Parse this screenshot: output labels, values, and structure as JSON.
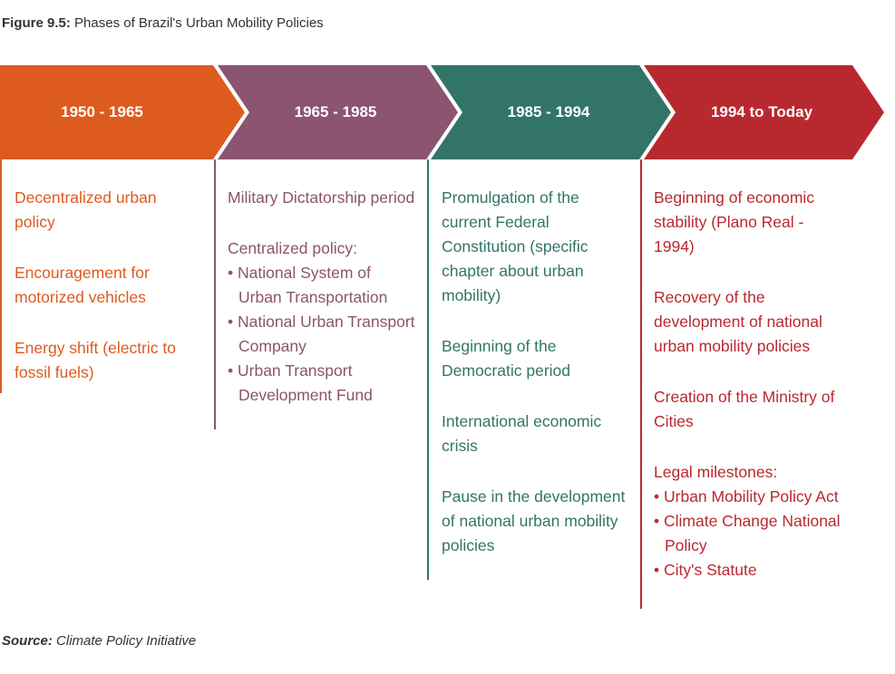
{
  "figure": {
    "label": "Figure 9.5:",
    "title": "Phases of Brazil's Urban Mobility Policies"
  },
  "source": {
    "label": "Source:",
    "text": "Climate Policy Initiative"
  },
  "colors": {
    "orange": "#dd5b1f",
    "purple": "#8b5470",
    "teal": "#327568",
    "red": "#b8292f"
  },
  "phases": [
    {
      "period": "1950 - 1965",
      "items": [
        {
          "text": "Decentralized urban policy"
        },
        {
          "text": "Encouragement for motorized vehicles"
        },
        {
          "text": "Energy shift (electric to fossil fuels)"
        }
      ]
    },
    {
      "period": "1965 - 1985",
      "items": [
        {
          "text": "Military Dictatorship period"
        },
        {
          "text": "Centralized policy:",
          "bullets": [
            "National System of Urban Transportation",
            "National Urban Transport Company",
            "Urban Transport Development Fund"
          ]
        }
      ]
    },
    {
      "period": "1985 - 1994",
      "items": [
        {
          "text": "Promulgation of the current Federal Constitution (specific chapter about urban mobility)"
        },
        {
          "text": "Beginning of the Democratic period"
        },
        {
          "text": "International economic crisis"
        },
        {
          "text": "Pause in the development of national urban mobility policies"
        }
      ]
    },
    {
      "period": "1994 to Today",
      "items": [
        {
          "text": "Beginning of economic stability (Plano Real - 1994)"
        },
        {
          "text": "Recovery of the development of national urban mobility policies"
        },
        {
          "text": "Creation of the Ministry of Cities"
        },
        {
          "text": "Legal milestones:",
          "bullets": [
            "Urban Mobility Policy Act",
            "Climate Change National Policy",
            "City's Statute"
          ]
        }
      ]
    }
  ]
}
